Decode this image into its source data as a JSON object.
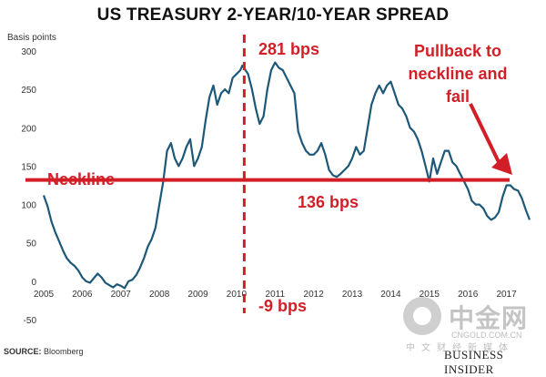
{
  "chart_data": {
    "type": "line",
    "title": "US TREASURY 2-YEAR/10-YEAR SPREAD",
    "ylabel": "Basis points",
    "ylim": [
      -50,
      300
    ],
    "yticks": [
      -50,
      0,
      50,
      100,
      150,
      200,
      250,
      300
    ],
    "xlim": [
      2005,
      2017.6
    ],
    "xticks": [
      2005,
      2006,
      2007,
      2008,
      2009,
      2010,
      2011,
      2012,
      2013,
      2014,
      2015,
      2016,
      2017
    ],
    "grid": false,
    "series": [
      {
        "color": "#1d5878",
        "points": [
          [
            2005.0,
            112
          ],
          [
            2005.1,
            98
          ],
          [
            2005.2,
            78
          ],
          [
            2005.3,
            64
          ],
          [
            2005.4,
            52
          ],
          [
            2005.5,
            40
          ],
          [
            2005.6,
            30
          ],
          [
            2005.7,
            24
          ],
          [
            2005.8,
            20
          ],
          [
            2005.9,
            14
          ],
          [
            2006.0,
            5
          ],
          [
            2006.1,
            0
          ],
          [
            2006.2,
            -2
          ],
          [
            2006.3,
            4
          ],
          [
            2006.4,
            10
          ],
          [
            2006.5,
            5
          ],
          [
            2006.6,
            -2
          ],
          [
            2006.7,
            -5
          ],
          [
            2006.8,
            -8
          ],
          [
            2006.9,
            -4
          ],
          [
            2007.0,
            -6
          ],
          [
            2007.1,
            -9
          ],
          [
            2007.2,
            0
          ],
          [
            2007.3,
            2
          ],
          [
            2007.4,
            8
          ],
          [
            2007.5,
            18
          ],
          [
            2007.6,
            30
          ],
          [
            2007.7,
            45
          ],
          [
            2007.8,
            55
          ],
          [
            2007.9,
            70
          ],
          [
            2008.0,
            100
          ],
          [
            2008.1,
            130
          ],
          [
            2008.2,
            170
          ],
          [
            2008.3,
            180
          ],
          [
            2008.4,
            160
          ],
          [
            2008.5,
            150
          ],
          [
            2008.6,
            160
          ],
          [
            2008.7,
            175
          ],
          [
            2008.8,
            185
          ],
          [
            2008.9,
            150
          ],
          [
            2009.0,
            160
          ],
          [
            2009.1,
            175
          ],
          [
            2009.2,
            210
          ],
          [
            2009.3,
            240
          ],
          [
            2009.4,
            255
          ],
          [
            2009.5,
            230
          ],
          [
            2009.6,
            245
          ],
          [
            2009.7,
            250
          ],
          [
            2009.8,
            245
          ],
          [
            2009.9,
            265
          ],
          [
            2010.0,
            270
          ],
          [
            2010.1,
            275
          ],
          [
            2010.15,
            281
          ],
          [
            2010.3,
            270
          ],
          [
            2010.4,
            250
          ],
          [
            2010.5,
            225
          ],
          [
            2010.6,
            205
          ],
          [
            2010.7,
            215
          ],
          [
            2010.8,
            250
          ],
          [
            2010.9,
            275
          ],
          [
            2011.0,
            285
          ],
          [
            2011.1,
            278
          ],
          [
            2011.2,
            275
          ],
          [
            2011.3,
            265
          ],
          [
            2011.4,
            255
          ],
          [
            2011.5,
            245
          ],
          [
            2011.6,
            195
          ],
          [
            2011.7,
            180
          ],
          [
            2011.8,
            170
          ],
          [
            2011.9,
            165
          ],
          [
            2012.0,
            165
          ],
          [
            2012.1,
            170
          ],
          [
            2012.2,
            180
          ],
          [
            2012.3,
            165
          ],
          [
            2012.4,
            145
          ],
          [
            2012.5,
            138
          ],
          [
            2012.6,
            136
          ],
          [
            2012.7,
            140
          ],
          [
            2012.8,
            145
          ],
          [
            2012.9,
            150
          ],
          [
            2013.0,
            160
          ],
          [
            2013.1,
            175
          ],
          [
            2013.2,
            165
          ],
          [
            2013.3,
            170
          ],
          [
            2013.4,
            200
          ],
          [
            2013.5,
            230
          ],
          [
            2013.6,
            245
          ],
          [
            2013.7,
            255
          ],
          [
            2013.8,
            245
          ],
          [
            2013.9,
            255
          ],
          [
            2014.0,
            260
          ],
          [
            2014.1,
            245
          ],
          [
            2014.2,
            230
          ],
          [
            2014.3,
            225
          ],
          [
            2014.4,
            215
          ],
          [
            2014.5,
            200
          ],
          [
            2014.6,
            195
          ],
          [
            2014.7,
            185
          ],
          [
            2014.8,
            170
          ],
          [
            2014.9,
            150
          ],
          [
            2015.0,
            130
          ],
          [
            2015.1,
            160
          ],
          [
            2015.2,
            140
          ],
          [
            2015.3,
            155
          ],
          [
            2015.4,
            170
          ],
          [
            2015.5,
            170
          ],
          [
            2015.6,
            155
          ],
          [
            2015.7,
            150
          ],
          [
            2015.8,
            140
          ],
          [
            2015.9,
            130
          ],
          [
            2016.0,
            120
          ],
          [
            2016.1,
            105
          ],
          [
            2016.2,
            100
          ],
          [
            2016.3,
            100
          ],
          [
            2016.4,
            95
          ],
          [
            2016.5,
            85
          ],
          [
            2016.6,
            80
          ],
          [
            2016.7,
            83
          ],
          [
            2016.8,
            90
          ],
          [
            2016.9,
            110
          ],
          [
            2017.0,
            125
          ],
          [
            2017.1,
            125
          ],
          [
            2017.2,
            120
          ],
          [
            2017.3,
            118
          ],
          [
            2017.4,
            108
          ],
          [
            2017.5,
            93
          ],
          [
            2017.6,
            80
          ]
        ]
      }
    ],
    "neckline": {
      "y": 132
    },
    "vline": {
      "x": 2010.2
    },
    "annotations": [
      {
        "label": "281 bps"
      },
      {
        "label": "-9 bps"
      },
      {
        "label": "Neckline"
      },
      {
        "label": "136 bps"
      },
      {
        "label": "Pullback to"
      },
      {
        "label": "neckline and"
      },
      {
        "label": "fail"
      }
    ],
    "accent_color": "#d21f27",
    "line_color": "#1d5878"
  },
  "source": {
    "prefix": "SOURCE:",
    "text": "Bloomberg"
  },
  "watermark": {
    "chinese": "中金网",
    "url": "CNGOLD.COM.CN",
    "subtitle": "中文财经新媒体"
  },
  "brand": "BUSINESS INSIDER"
}
